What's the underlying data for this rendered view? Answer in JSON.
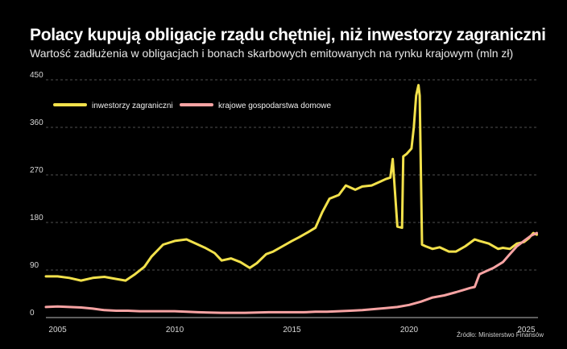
{
  "header": {
    "title": "Polacy kupują obligacje rządu chętniej, niż inwestorzy zagraniczni",
    "subtitle": "Wartość zadłużenia w obligacjach i bonach skarbowych emitowanych na rynku krajowym (mln zł)"
  },
  "source": "Źródło: Ministerstwo Finansów",
  "chart_data": {
    "type": "line",
    "xlim": [
      2004.5,
      2025.5
    ],
    "ylim": [
      0,
      450
    ],
    "x_ticks": [
      "2005",
      "2010",
      "2015",
      "2020",
      "2025"
    ],
    "y_ticks": [
      "0",
      "90",
      "180",
      "270",
      "360",
      "450"
    ],
    "grid": "horizontal dashed",
    "legend_position": "top-left",
    "series": [
      {
        "name": "inwestorzy zagraniczni",
        "color": "#f2e14b",
        "x": [
          2004.5,
          2005.0,
          2005.5,
          2006.0,
          2006.5,
          2007.0,
          2007.5,
          2007.9,
          2008.3,
          2008.7,
          2009.0,
          2009.5,
          2010.0,
          2010.5,
          2010.9,
          2011.3,
          2011.7,
          2012.0,
          2012.4,
          2012.8,
          2013.2,
          2013.5,
          2013.9,
          2014.2,
          2014.6,
          2015.0,
          2015.3,
          2015.7,
          2016.0,
          2016.3,
          2016.6,
          2017.0,
          2017.3,
          2017.7,
          2018.0,
          2018.4,
          2018.8,
          2019.0,
          2019.2,
          2019.3,
          2019.5,
          2019.7,
          2019.75,
          2019.9,
          2020.1,
          2020.2,
          2020.3,
          2020.4,
          2020.45,
          2020.55,
          2020.7,
          2021.0,
          2021.3,
          2021.7,
          2022.0,
          2022.4,
          2022.8,
          2023.0,
          2023.4,
          2023.8,
          2024.0,
          2024.3,
          2024.6,
          2024.9,
          2025.1,
          2025.3,
          2025.45
        ],
        "y": [
          78,
          78,
          75,
          70,
          75,
          77,
          73,
          70,
          82,
          96,
          115,
          138,
          145,
          148,
          140,
          132,
          122,
          108,
          112,
          105,
          94,
          103,
          120,
          125,
          135,
          145,
          152,
          162,
          170,
          200,
          225,
          232,
          250,
          242,
          248,
          250,
          258,
          262,
          265,
          300,
          172,
          170,
          305,
          310,
          320,
          360,
          420,
          440,
          420,
          138,
          135,
          130,
          133,
          125,
          125,
          135,
          148,
          145,
          140,
          130,
          132,
          130,
          140,
          143,
          150,
          160,
          157
        ]
      },
      {
        "name": "krajowe gospodarstwa domowe",
        "color": "#f7a3a3",
        "x": [
          2004.5,
          2005.0,
          2005.5,
          2006.0,
          2006.5,
          2007.0,
          2007.5,
          2008.0,
          2008.5,
          2009.0,
          2009.5,
          2010.0,
          2010.5,
          2011.0,
          2012.0,
          2013.0,
          2014.0,
          2015.0,
          2015.5,
          2016.0,
          2016.5,
          2017.0,
          2017.5,
          2018.0,
          2018.5,
          2019.0,
          2019.5,
          2020.0,
          2020.5,
          2021.0,
          2021.5,
          2022.0,
          2022.3,
          2022.6,
          2022.8,
          2023.0,
          2023.3,
          2023.6,
          2024.0,
          2024.3,
          2024.6,
          2024.9,
          2025.2,
          2025.45
        ],
        "y": [
          20,
          21,
          20,
          19,
          17,
          14,
          13,
          13,
          12,
          12,
          12,
          12,
          11,
          10,
          9,
          9,
          10,
          10,
          10,
          11,
          11,
          12,
          13,
          14,
          16,
          18,
          20,
          24,
          30,
          38,
          42,
          48,
          52,
          56,
          58,
          82,
          88,
          94,
          105,
          120,
          135,
          145,
          155,
          160
        ]
      }
    ]
  }
}
